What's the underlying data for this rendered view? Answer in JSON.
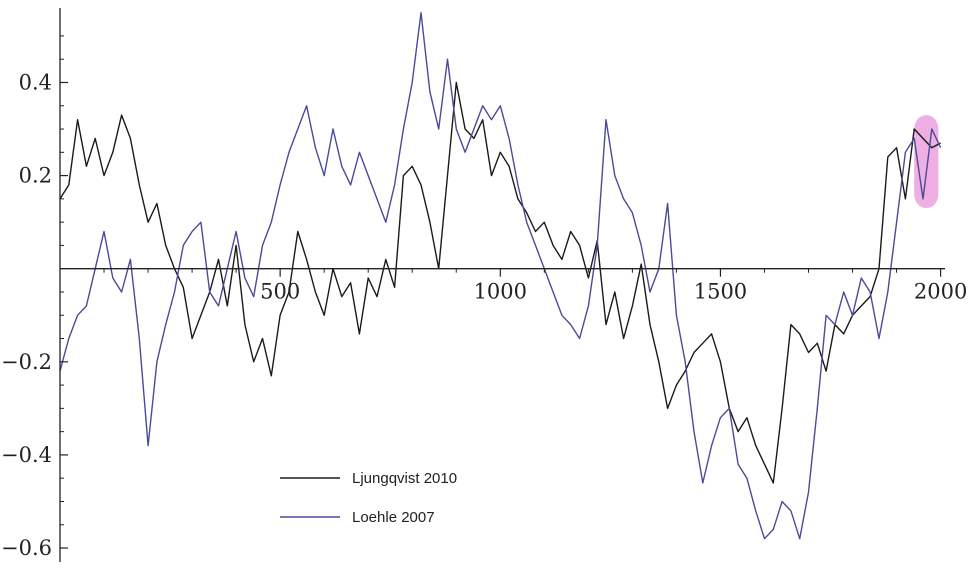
{
  "chart_data": {
    "type": "line",
    "title": "",
    "xlabel": "",
    "ylabel": "",
    "xlim": [
      0,
      2010
    ],
    "ylim": [
      -0.63,
      0.56
    ],
    "x_ticks": [
      500,
      1000,
      1500,
      2000
    ],
    "x_tick_labels": [
      "500",
      "1000",
      "1500",
      "2000"
    ],
    "y_ticks": [
      0.4,
      0.2,
      -0.2,
      -0.4,
      -0.6
    ],
    "y_tick_labels": [
      "0.4",
      "0.2",
      "−0.2",
      "−0.4",
      "−0.6"
    ],
    "grid": false,
    "legend_position": "bottom-center",
    "highlight": {
      "x_range": [
        1940,
        1995
      ],
      "y_range": [
        0.13,
        0.33
      ],
      "color": "#e896d8"
    },
    "series": [
      {
        "name": "Ljungqvist 2010",
        "color": "#1a1a1a",
        "x": [
          0,
          20,
          40,
          60,
          80,
          100,
          120,
          140,
          160,
          180,
          200,
          220,
          240,
          260,
          280,
          300,
          320,
          340,
          360,
          380,
          400,
          420,
          440,
          460,
          480,
          500,
          520,
          540,
          560,
          580,
          600,
          620,
          640,
          660,
          680,
          700,
          720,
          740,
          760,
          780,
          800,
          820,
          840,
          860,
          880,
          900,
          920,
          940,
          960,
          980,
          1000,
          1020,
          1040,
          1060,
          1080,
          1100,
          1120,
          1140,
          1160,
          1180,
          1200,
          1220,
          1240,
          1260,
          1280,
          1300,
          1320,
          1340,
          1360,
          1380,
          1400,
          1420,
          1440,
          1460,
          1480,
          1500,
          1520,
          1540,
          1560,
          1580,
          1600,
          1620,
          1640,
          1660,
          1680,
          1700,
          1720,
          1740,
          1760,
          1780,
          1800,
          1820,
          1840,
          1860,
          1880,
          1900,
          1920,
          1940,
          1960,
          1980,
          2000
        ],
        "values": [
          0.15,
          0.18,
          0.32,
          0.22,
          0.28,
          0.2,
          0.25,
          0.33,
          0.28,
          0.18,
          0.1,
          0.14,
          0.05,
          0.0,
          -0.04,
          -0.15,
          -0.1,
          -0.05,
          0.02,
          -0.08,
          0.05,
          -0.12,
          -0.2,
          -0.15,
          -0.23,
          -0.1,
          -0.05,
          0.08,
          0.02,
          -0.05,
          -0.1,
          0.0,
          -0.06,
          -0.03,
          -0.14,
          -0.02,
          -0.06,
          0.02,
          -0.04,
          0.2,
          0.22,
          0.18,
          0.1,
          0.0,
          0.2,
          0.4,
          0.3,
          0.28,
          0.32,
          0.2,
          0.25,
          0.22,
          0.15,
          0.12,
          0.08,
          0.1,
          0.05,
          0.02,
          0.08,
          0.05,
          -0.02,
          0.06,
          -0.12,
          -0.05,
          -0.15,
          -0.08,
          0.01,
          -0.12,
          -0.2,
          -0.3,
          -0.25,
          -0.22,
          -0.18,
          -0.16,
          -0.14,
          -0.2,
          -0.3,
          -0.35,
          -0.32,
          -0.38,
          -0.42,
          -0.46,
          -0.3,
          -0.12,
          -0.14,
          -0.18,
          -0.16,
          -0.22,
          -0.12,
          -0.14,
          -0.1,
          -0.08,
          -0.06,
          0.0,
          0.24,
          0.26,
          0.15,
          0.3,
          0.28,
          0.26,
          0.27
        ]
      },
      {
        "name": "Loehle 2007",
        "color": "#4a4a9a",
        "x": [
          0,
          20,
          40,
          60,
          80,
          100,
          120,
          140,
          160,
          180,
          200,
          220,
          240,
          260,
          280,
          300,
          320,
          340,
          360,
          380,
          400,
          420,
          440,
          460,
          480,
          500,
          520,
          540,
          560,
          580,
          600,
          620,
          640,
          660,
          680,
          700,
          720,
          740,
          760,
          780,
          800,
          820,
          840,
          860,
          880,
          900,
          920,
          940,
          960,
          980,
          1000,
          1020,
          1040,
          1060,
          1080,
          1100,
          1120,
          1140,
          1160,
          1180,
          1200,
          1220,
          1240,
          1260,
          1280,
          1300,
          1320,
          1340,
          1360,
          1380,
          1400,
          1420,
          1440,
          1460,
          1480,
          1500,
          1520,
          1540,
          1560,
          1580,
          1600,
          1620,
          1640,
          1660,
          1680,
          1700,
          1720,
          1740,
          1760,
          1780,
          1800,
          1820,
          1840,
          1860,
          1880,
          1900,
          1920,
          1940,
          1960,
          1980,
          2000
        ],
        "values": [
          -0.22,
          -0.15,
          -0.1,
          -0.08,
          0.0,
          0.08,
          -0.02,
          -0.05,
          0.02,
          -0.15,
          -0.38,
          -0.2,
          -0.12,
          -0.05,
          0.05,
          0.08,
          0.1,
          -0.05,
          -0.08,
          0.0,
          0.08,
          -0.02,
          -0.06,
          0.05,
          0.1,
          0.18,
          0.25,
          0.3,
          0.35,
          0.26,
          0.2,
          0.3,
          0.22,
          0.18,
          0.25,
          0.2,
          0.15,
          0.1,
          0.18,
          0.3,
          0.4,
          0.55,
          0.38,
          0.3,
          0.45,
          0.3,
          0.25,
          0.3,
          0.35,
          0.32,
          0.35,
          0.28,
          0.18,
          0.1,
          0.05,
          0.0,
          -0.05,
          -0.1,
          -0.12,
          -0.15,
          -0.08,
          0.05,
          0.32,
          0.2,
          0.15,
          0.12,
          0.05,
          -0.05,
          0.0,
          0.14,
          -0.1,
          -0.2,
          -0.35,
          -0.46,
          -0.38,
          -0.32,
          -0.3,
          -0.42,
          -0.45,
          -0.52,
          -0.58,
          -0.56,
          -0.5,
          -0.52,
          -0.58,
          -0.48,
          -0.3,
          -0.1,
          -0.12,
          -0.05,
          -0.1,
          -0.02,
          -0.05,
          -0.15,
          -0.05,
          0.1,
          0.25,
          0.28,
          0.15,
          0.3,
          0.26
        ]
      }
    ]
  }
}
